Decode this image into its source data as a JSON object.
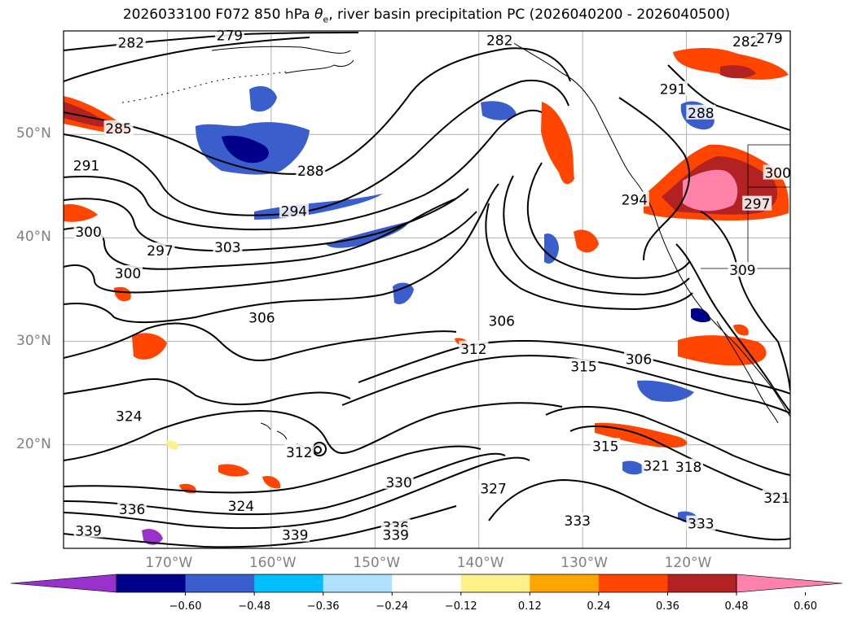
{
  "title": {
    "prefix": "2026033100 F072 850 hPa ",
    "theta": "θ",
    "sub": "e",
    "suffix": ", river basin precipitation PC (2026040200 - 2026040500)"
  },
  "map": {
    "lon_range": [
      -180,
      -110
    ],
    "lat_range": [
      10,
      60
    ],
    "lon_labels": [
      {
        "text": "170°W",
        "lon": -170
      },
      {
        "text": "160°W",
        "lon": -160
      },
      {
        "text": "150°W",
        "lon": -150
      },
      {
        "text": "140°W",
        "lon": -140
      },
      {
        "text": "130°W",
        "lon": -130
      },
      {
        "text": "120°W",
        "lon": -120
      }
    ],
    "lat_labels": [
      {
        "text": "50°N",
        "lat": 50
      },
      {
        "text": "40°N",
        "lat": 40
      },
      {
        "text": "30°N",
        "lat": 30
      },
      {
        "text": "20°N",
        "lat": 20
      }
    ],
    "gridlines": true,
    "contour_labels": [
      {
        "text": "282",
        "lon": -173.5,
        "lat": 58.8
      },
      {
        "text": "279",
        "lon": -164,
        "lat": 59.5
      },
      {
        "text": "285",
        "lon": -174.7,
        "lat": 50.5
      },
      {
        "text": "291",
        "lon": -177.8,
        "lat": 46.9
      },
      {
        "text": "300",
        "lon": -177.6,
        "lat": 40.5
      },
      {
        "text": "297",
        "lon": -170.7,
        "lat": 38.7
      },
      {
        "text": "300",
        "lon": -173.8,
        "lat": 36.5
      },
      {
        "text": "288",
        "lon": -156.2,
        "lat": 46.4
      },
      {
        "text": "294",
        "lon": -157.8,
        "lat": 42.5
      },
      {
        "text": "303",
        "lon": -164.2,
        "lat": 39.0
      },
      {
        "text": "306",
        "lon": -160.9,
        "lat": 32.2
      },
      {
        "text": "282",
        "lon": -138.0,
        "lat": 59.0
      },
      {
        "text": "282",
        "lon": -114.3,
        "lat": 58.9
      },
      {
        "text": "279",
        "lon": -112,
        "lat": 59.2
      },
      {
        "text": "291",
        "lon": -121.3,
        "lat": 54.3
      },
      {
        "text": "288",
        "lon": -118.6,
        "lat": 52.0
      },
      {
        "text": "294",
        "lon": -125,
        "lat": 43.6
      },
      {
        "text": "300",
        "lon": -111.2,
        "lat": 46.2
      },
      {
        "text": "297",
        "lon": -113.2,
        "lat": 43.2
      },
      {
        "text": "309",
        "lon": -114.6,
        "lat": 36.8
      },
      {
        "text": "306",
        "lon": -137.8,
        "lat": 31.9
      },
      {
        "text": "312",
        "lon": -140.5,
        "lat": 29.2
      },
      {
        "text": "315",
        "lon": -129.9,
        "lat": 27.5
      },
      {
        "text": "306",
        "lon": -124.6,
        "lat": 28.2
      },
      {
        "text": "315",
        "lon": -127.8,
        "lat": 19.8
      },
      {
        "text": "321",
        "lon": -122.9,
        "lat": 17.9
      },
      {
        "text": "318",
        "lon": -119.8,
        "lat": 17.8
      },
      {
        "text": "321",
        "lon": -111.3,
        "lat": 14.8
      },
      {
        "text": "324",
        "lon": -173.7,
        "lat": 22.7
      },
      {
        "text": "312",
        "lon": -157.3,
        "lat": 19.2
      },
      {
        "text": "330",
        "lon": -147.7,
        "lat": 16.3
      },
      {
        "text": "327",
        "lon": -138.6,
        "lat": 15.7
      },
      {
        "text": "324",
        "lon": -162.9,
        "lat": 14.0
      },
      {
        "text": "336",
        "lon": -173.4,
        "lat": 13.7
      },
      {
        "text": "339",
        "lon": -177.6,
        "lat": 11.6
      },
      {
        "text": "336",
        "lon": -148.0,
        "lat": 12.0
      },
      {
        "text": "339",
        "lon": -148.0,
        "lat": 11.2
      },
      {
        "text": "339",
        "lon": -157.7,
        "lat": 11.2
      },
      {
        "text": "333",
        "lon": -130.5,
        "lat": 12.6
      },
      {
        "text": "333",
        "lon": -118.6,
        "lat": 12.3
      }
    ]
  },
  "colorbar": {
    "ticks": [
      "−0.60",
      "−0.48",
      "−0.36",
      "−0.24",
      "−0.12",
      "0.12",
      "0.24",
      "0.36",
      "0.48",
      "0.60"
    ],
    "colors": [
      "#9932cc",
      "#00008b",
      "#3a5fcd",
      "#00bfff",
      "#b0e2ff",
      "#ffffff",
      "#fff08a",
      "#ffa500",
      "#ff4500",
      "#b22222",
      "#ff82ab"
    ],
    "extend": "both"
  }
}
